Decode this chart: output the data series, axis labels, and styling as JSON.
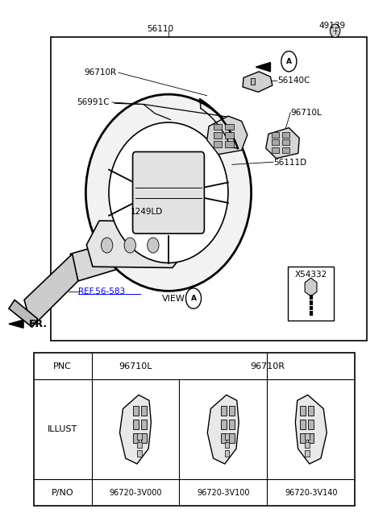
{
  "bg_color": "#ffffff",
  "line_color": "#000000",
  "font_size_label": 7.5,
  "font_size_table": 7.5,
  "table": {
    "pno_values": [
      "96720-3V000",
      "96720-3V100",
      "96720-3V140"
    ]
  }
}
